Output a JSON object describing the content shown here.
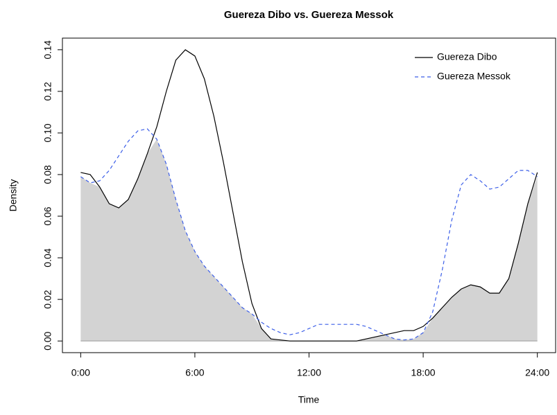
{
  "chart_data": {
    "type": "overlap",
    "title": "Guereza Dibo vs. Guereza Messok",
    "xlabel": "Time",
    "ylabel": "Density",
    "x": [
      0,
      0.5,
      1,
      1.5,
      2,
      2.5,
      3,
      3.5,
      4,
      4.5,
      5,
      5.5,
      6,
      6.5,
      7,
      7.5,
      8,
      8.5,
      9,
      9.5,
      10,
      10.5,
      11,
      11.5,
      12,
      12.5,
      13,
      13.5,
      14,
      14.5,
      15,
      15.5,
      16,
      16.5,
      17,
      17.5,
      18,
      18.5,
      19,
      19.5,
      20,
      20.5,
      21,
      21.5,
      22,
      22.5,
      23,
      23.5,
      24
    ],
    "series": [
      {
        "name": "Guereza Dibo",
        "color": "#000000",
        "dash": "none",
        "values": [
          0.081,
          0.08,
          0.074,
          0.066,
          0.064,
          0.068,
          0.078,
          0.09,
          0.103,
          0.12,
          0.135,
          0.14,
          0.137,
          0.126,
          0.108,
          0.086,
          0.062,
          0.038,
          0.018,
          0.006,
          0.001,
          0.0005,
          0,
          0,
          0,
          0,
          0,
          0,
          0,
          0,
          0.001,
          0.002,
          0.003,
          0.004,
          0.005,
          0.005,
          0.007,
          0.011,
          0.016,
          0.021,
          0.025,
          0.027,
          0.026,
          0.023,
          0.023,
          0.03,
          0.047,
          0.066,
          0.081
        ]
      },
      {
        "name": "Guereza Messok",
        "color": "#3b5ee8",
        "dash": "5 4",
        "values": [
          0.079,
          0.076,
          0.077,
          0.082,
          0.089,
          0.096,
          0.101,
          0.102,
          0.097,
          0.085,
          0.068,
          0.053,
          0.043,
          0.036,
          0.031,
          0.026,
          0.021,
          0.016,
          0.013,
          0.009,
          0.006,
          0.004,
          0.003,
          0.004,
          0.006,
          0.008,
          0.008,
          0.008,
          0.008,
          0.008,
          0.007,
          0.005,
          0.003,
          0.001,
          0.0005,
          0.001,
          0.004,
          0.014,
          0.034,
          0.058,
          0.075,
          0.08,
          0.077,
          0.073,
          0.074,
          0.078,
          0.082,
          0.082,
          0.079
        ]
      }
    ],
    "overlap_color": "#d3d3d3",
    "xlim": [
      -0.96,
      24.96
    ],
    "xticks": [
      {
        "value": 0,
        "label": "0:00"
      },
      {
        "value": 6,
        "label": "6:00"
      },
      {
        "value": 12,
        "label": "12:00"
      },
      {
        "value": 18,
        "label": "18:00"
      },
      {
        "value": 24,
        "label": "24:00"
      }
    ],
    "ylim": [
      -0.0056,
      0.1456
    ],
    "yticks": [
      {
        "value": 0,
        "label": "0.00"
      },
      0.02,
      0.04,
      0.06,
      0.08,
      {
        "value": 0.1,
        "label": "0.10"
      },
      0.12,
      0.14
    ],
    "legend": "topright"
  }
}
